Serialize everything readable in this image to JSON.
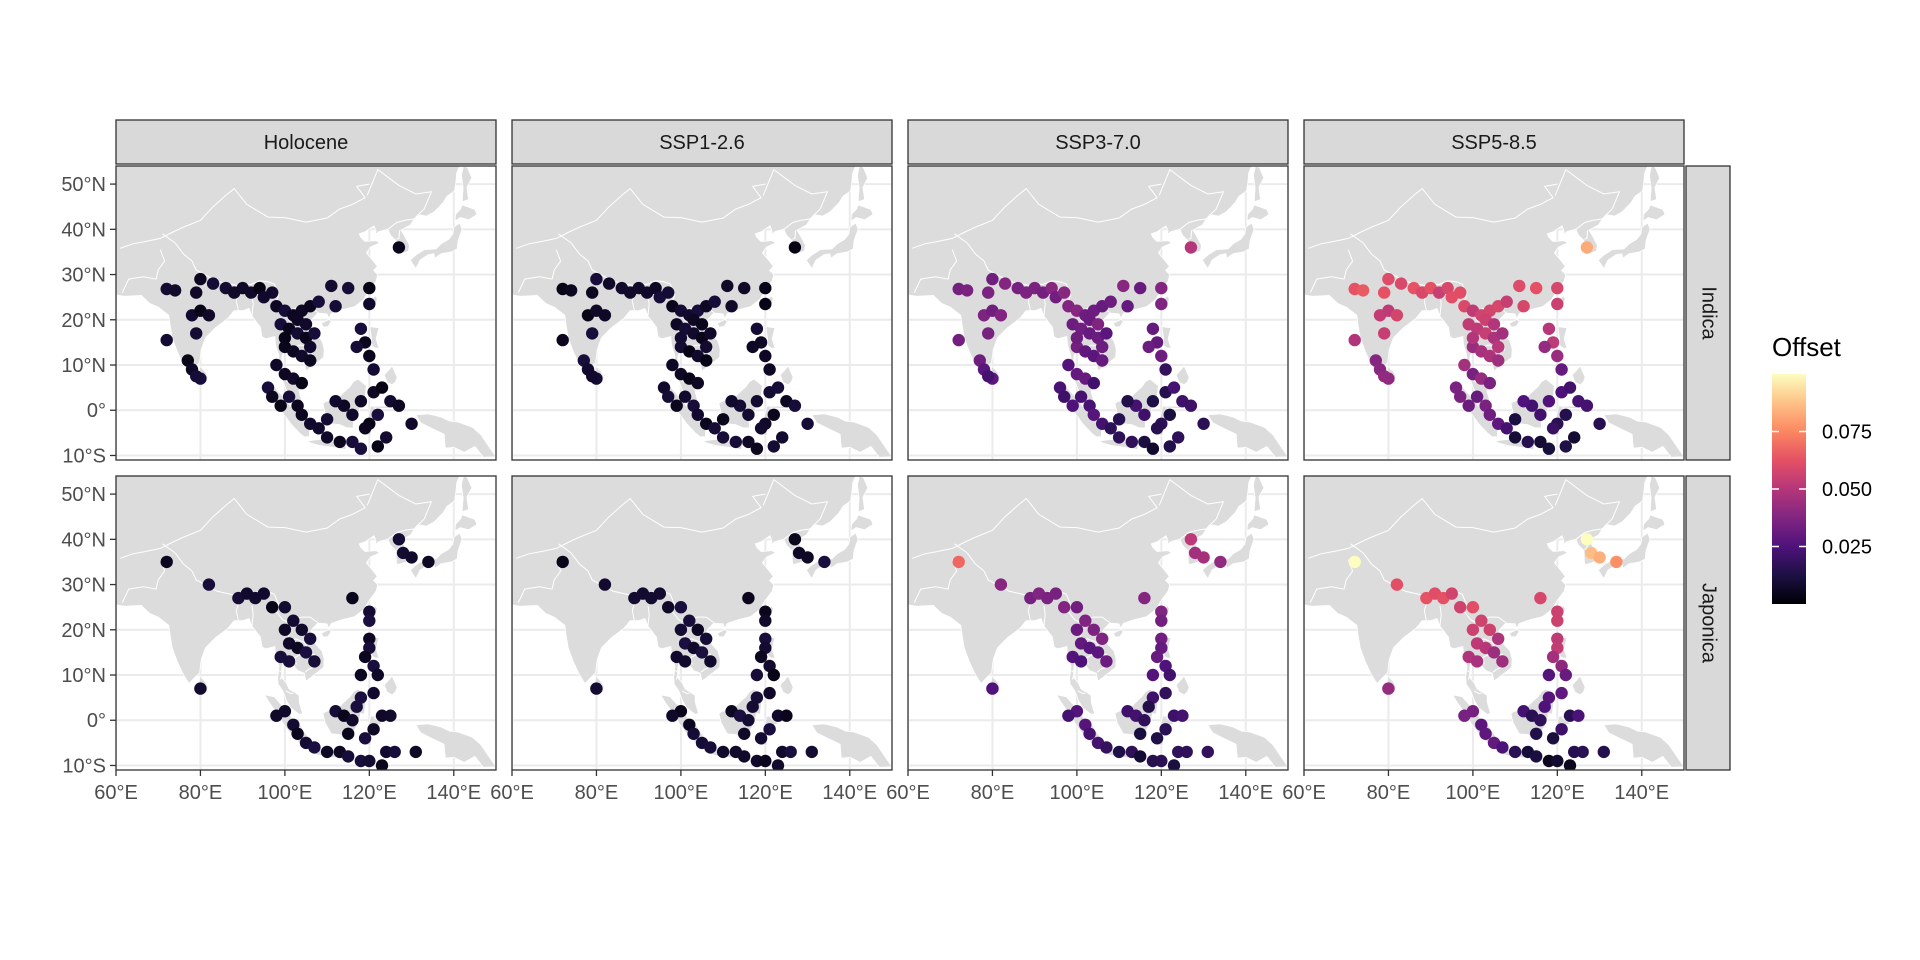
{
  "chart_data": {
    "type": "scatter",
    "subtype": "faceted map",
    "colors": {
      "land": "#dcdcdc",
      "grid": "#ebebeb",
      "strip": "#d9d9d9",
      "border": "#333333"
    },
    "scenarios": [
      "Holocene",
      "SSP1-2.6",
      "SSP3-7.0",
      "SSP5-8.5"
    ],
    "varieties": [
      "Indica",
      "Japonica"
    ],
    "x_axis": {
      "range": [
        60,
        150
      ],
      "ticks": [
        60,
        80,
        100,
        120,
        140
      ],
      "labels": [
        "60°E",
        "80°E",
        "100°E",
        "120°E",
        "140°E"
      ]
    },
    "y_axis": {
      "range": [
        -11,
        54
      ],
      "ticks": [
        50,
        40,
        30,
        20,
        10,
        0,
        -10
      ],
      "labels": [
        "50°N",
        "40°N",
        "30°N",
        "20°N",
        "10°N",
        "0°",
        "10°S"
      ]
    },
    "legend": {
      "title": "Offset",
      "range": [
        0,
        0.1
      ],
      "breaks": [
        0.075,
        0.05,
        0.025
      ],
      "labels": [
        "0.075",
        "0.050",
        "0.025"
      ],
      "palette": [
        "#000004",
        "#1c1044",
        "#4f127b",
        "#812581",
        "#b5367a",
        "#e55064",
        "#fb8761",
        "#fec287",
        "#fcfdbf"
      ]
    },
    "sites": {
      "Indica": [
        [
          127,
          36
        ],
        [
          72,
          26.8
        ],
        [
          74,
          26.5
        ],
        [
          79,
          26
        ],
        [
          80,
          29
        ],
        [
          83,
          28
        ],
        [
          86,
          27
        ],
        [
          88,
          26
        ],
        [
          90,
          27
        ],
        [
          92,
          26
        ],
        [
          94,
          27
        ],
        [
          95,
          25
        ],
        [
          97,
          26
        ],
        [
          98,
          23
        ],
        [
          100,
          22
        ],
        [
          102,
          21
        ],
        [
          104,
          22
        ],
        [
          106,
          23
        ],
        [
          108,
          24
        ],
        [
          111,
          27.5
        ],
        [
          112,
          23
        ],
        [
          115,
          27
        ],
        [
          120,
          27
        ],
        [
          120,
          23.5
        ],
        [
          99,
          19
        ],
        [
          101,
          18
        ],
        [
          103,
          17
        ],
        [
          105,
          16
        ],
        [
          107,
          17
        ],
        [
          100,
          14
        ],
        [
          102,
          13
        ],
        [
          104,
          12
        ],
        [
          106,
          11
        ],
        [
          103,
          20
        ],
        [
          105,
          19
        ],
        [
          100,
          16
        ],
        [
          106,
          14
        ],
        [
          118,
          18
        ],
        [
          119,
          15
        ],
        [
          120,
          12
        ],
        [
          121,
          9
        ],
        [
          117,
          14
        ],
        [
          78,
          21
        ],
        [
          80,
          22
        ],
        [
          82,
          21
        ],
        [
          79,
          17
        ],
        [
          72,
          15.5
        ],
        [
          77,
          11
        ],
        [
          78,
          9
        ],
        [
          80,
          7
        ],
        [
          79,
          7.5
        ],
        [
          98,
          10
        ],
        [
          100,
          8
        ],
        [
          102,
          7
        ],
        [
          104,
          6
        ],
        [
          101,
          3
        ],
        [
          103,
          1
        ],
        [
          104,
          -1
        ],
        [
          106,
          -3
        ],
        [
          108,
          -4
        ],
        [
          110,
          -6
        ],
        [
          113,
          -7
        ],
        [
          116,
          -7
        ],
        [
          118,
          -8.5
        ],
        [
          122,
          -8
        ],
        [
          124,
          -6
        ],
        [
          120,
          -3
        ],
        [
          122,
          -1
        ],
        [
          116,
          -1
        ],
        [
          114,
          1
        ],
        [
          112,
          2
        ],
        [
          118,
          2
        ],
        [
          121,
          4
        ],
        [
          123,
          5
        ],
        [
          125,
          2
        ],
        [
          127,
          1
        ],
        [
          119,
          -4
        ],
        [
          110,
          -2
        ],
        [
          96,
          5
        ],
        [
          97,
          3
        ],
        [
          99,
          1
        ],
        [
          130,
          -3
        ]
      ],
      "Japonica": [
        [
          72,
          35
        ],
        [
          127,
          40
        ],
        [
          128,
          37
        ],
        [
          130,
          36
        ],
        [
          134,
          35
        ],
        [
          82,
          30
        ],
        [
          89,
          27
        ],
        [
          91,
          28
        ],
        [
          93,
          27
        ],
        [
          95,
          28
        ],
        [
          97,
          25
        ],
        [
          100,
          25
        ],
        [
          102,
          22
        ],
        [
          104,
          20
        ],
        [
          106,
          18
        ],
        [
          100,
          20
        ],
        [
          101,
          17
        ],
        [
          103,
          16
        ],
        [
          105,
          15
        ],
        [
          107,
          13
        ],
        [
          99,
          14
        ],
        [
          101,
          13
        ],
        [
          116,
          27
        ],
        [
          120,
          24
        ],
        [
          120,
          22
        ],
        [
          120,
          18
        ],
        [
          120,
          16
        ],
        [
          119,
          14
        ],
        [
          121,
          12
        ],
        [
          118,
          10
        ],
        [
          122,
          10
        ],
        [
          80,
          7
        ],
        [
          100,
          2
        ],
        [
          98,
          1
        ],
        [
          102,
          -1
        ],
        [
          103,
          -3
        ],
        [
          105,
          -5
        ],
        [
          107,
          -6
        ],
        [
          110,
          -7
        ],
        [
          113,
          -7
        ],
        [
          115,
          -8
        ],
        [
          118,
          -9
        ],
        [
          120,
          -9
        ],
        [
          123,
          -10
        ],
        [
          124,
          -7
        ],
        [
          126,
          -7
        ],
        [
          112,
          2
        ],
        [
          114,
          1
        ],
        [
          116,
          0
        ],
        [
          118,
          5
        ],
        [
          117,
          3
        ],
        [
          121,
          6
        ],
        [
          123,
          1
        ],
        [
          125,
          1
        ],
        [
          115,
          -3
        ],
        [
          119,
          -4
        ],
        [
          121,
          -2
        ],
        [
          131,
          -7
        ]
      ]
    },
    "offset_medians": {
      "Holocene": 0.006,
      "SSP1-2.6": 0.006,
      "SSP3-7.0": 0.029,
      "SSP5-8.5": 0.044
    }
  }
}
